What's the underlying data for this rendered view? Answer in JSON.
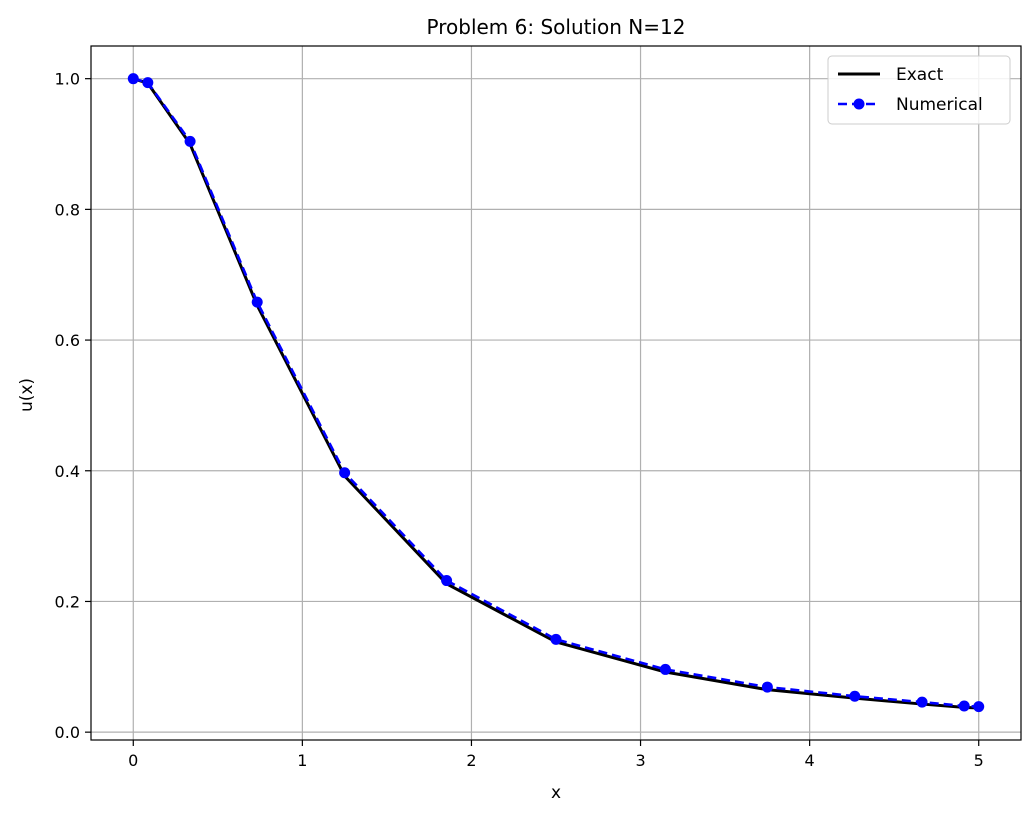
{
  "chart_data": {
    "type": "line",
    "title": "Problem 6: Solution N=12",
    "xlabel": "x",
    "ylabel": "u(x)",
    "xlim": [
      -0.25,
      5.25
    ],
    "ylim": [
      -0.012,
      1.05
    ],
    "xticks": [
      0,
      1,
      2,
      3,
      4,
      5
    ],
    "xtick_labels": [
      "0",
      "1",
      "2",
      "3",
      "4",
      "5"
    ],
    "yticks": [
      0.0,
      0.2,
      0.4,
      0.6,
      0.8,
      1.0
    ],
    "ytick_labels": [
      "0.0",
      "0.2",
      "0.4",
      "0.6",
      "0.8",
      "1.0"
    ],
    "grid": true,
    "legend_position": "top-right",
    "series": [
      {
        "name": "Exact",
        "color": "#000000",
        "style": "solid",
        "x": [
          0,
          0.086,
          0.336,
          0.733,
          1.25,
          1.853,
          2.5,
          3.147,
          3.75,
          4.267,
          4.665,
          4.914,
          5.0
        ],
        "y": [
          1.0,
          0.993,
          0.9,
          0.653,
          0.392,
          0.227,
          0.138,
          0.092,
          0.065,
          0.052,
          0.043,
          0.038,
          0.037
        ]
      },
      {
        "name": "Numerical",
        "color": "#0000ff",
        "style": "dashed",
        "marker": "circle",
        "x": [
          0,
          0.086,
          0.336,
          0.733,
          1.25,
          1.853,
          2.5,
          3.147,
          3.75,
          4.267,
          4.665,
          4.914,
          5.0
        ],
        "y": [
          1.0,
          0.994,
          0.904,
          0.658,
          0.397,
          0.232,
          0.142,
          0.096,
          0.069,
          0.055,
          0.046,
          0.04,
          0.039
        ]
      }
    ]
  }
}
